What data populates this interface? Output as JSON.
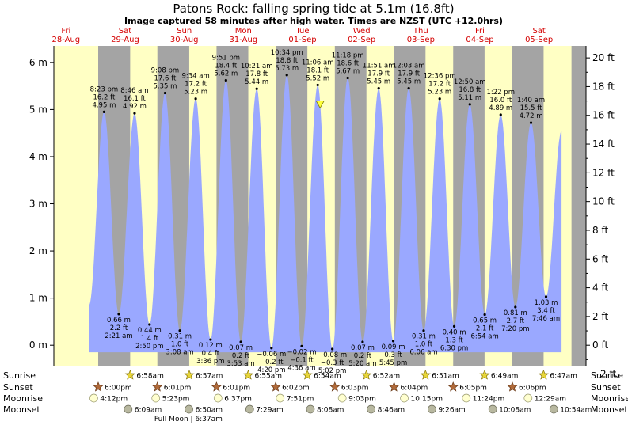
{
  "chart_data": {
    "type": "area",
    "title": "Patons Rock: falling  spring tide at 5.1m (16.8ft)",
    "subtitle": "Image captured 58 minutes after high water. Times are NZST (UTC +12.0hrs)",
    "day_labels": [
      {
        "day": "Fri",
        "date": "28-Aug"
      },
      {
        "day": "Sat",
        "date": "29-Aug"
      },
      {
        "day": "Sun",
        "date": "30-Aug"
      },
      {
        "day": "Mon",
        "date": "31-Aug"
      },
      {
        "day": "Tue",
        "date": "01-Sep"
      },
      {
        "day": "Wed",
        "date": "02-Sep"
      },
      {
        "day": "Thu",
        "date": "03-Sep"
      },
      {
        "day": "Fri",
        "date": "04-Sep"
      },
      {
        "day": "Sat",
        "date": "05-Sep"
      }
    ],
    "y_left": {
      "unit": "m",
      "range": [
        -0.45,
        6.35
      ],
      "ticks": [
        "0 m",
        "1 m",
        "2 m",
        "3 m",
        "4 m",
        "5 m",
        "6 m"
      ]
    },
    "y_right": {
      "unit": "ft",
      "ticks": [
        "−2 ft",
        "0 ft",
        "2 ft",
        "4 ft",
        "6 ft",
        "8 ft",
        "10 ft",
        "12 ft",
        "14 ft",
        "16 ft",
        "18 ft",
        "20 ft"
      ]
    },
    "x_range_hours": [
      0,
      216
    ],
    "tides": [
      {
        "type": "H",
        "t": 20.38,
        "m": 4.95,
        "m_label": "4.95 m",
        "ft_label": "16.2 ft",
        "time": "8:23 pm"
      },
      {
        "type": "L",
        "t": 26.35,
        "m": 0.66,
        "m_label": "0.66 m",
        "ft_label": "2.2 ft",
        "time": "2:21 am"
      },
      {
        "type": "H",
        "t": 32.77,
        "m": 4.92,
        "m_label": "4.92 m",
        "ft_label": "16.1 ft",
        "time": "8:46 am"
      },
      {
        "type": "L",
        "t": 38.83,
        "m": 0.44,
        "m_label": "0.44 m",
        "ft_label": "1.4 ft",
        "time": "2:50 pm"
      },
      {
        "type": "H",
        "t": 45.13,
        "m": 5.35,
        "m_label": "5.35 m",
        "ft_label": "17.6 ft",
        "time": "9:08 pm"
      },
      {
        "type": "L",
        "t": 51.13,
        "m": 0.31,
        "m_label": "0.31 m",
        "ft_label": "1.0 ft",
        "time": "3:08 am"
      },
      {
        "type": "H",
        "t": 57.57,
        "m": 5.23,
        "m_label": "5.23 m",
        "ft_label": "17.2 ft",
        "time": "9:34 am"
      },
      {
        "type": "L",
        "t": 63.6,
        "m": 0.12,
        "m_label": "0.12 m",
        "ft_label": "0.4 ft",
        "time": "3:36 pm"
      },
      {
        "type": "H",
        "t": 69.85,
        "m": 5.62,
        "m_label": "5.62 m",
        "ft_label": "18.4 ft",
        "time": "9:51 pm"
      },
      {
        "type": "L",
        "t": 75.88,
        "m": 0.07,
        "m_label": "0.07 m",
        "ft_label": "0.2 ft",
        "time": "3:53 am"
      },
      {
        "type": "H",
        "t": 82.35,
        "m": 5.44,
        "m_label": "5.44 m",
        "ft_label": "17.8 ft",
        "time": "10:21 am"
      },
      {
        "type": "L",
        "t": 88.33,
        "m": -0.06,
        "m_label": "−0.06 m",
        "ft_label": "−0.2 ft",
        "time": "4:20 pm"
      },
      {
        "type": "H",
        "t": 94.57,
        "m": 5.73,
        "m_label": "5.73 m",
        "ft_label": "18.8 ft",
        "time": "10:34 pm"
      },
      {
        "type": "L",
        "t": 100.6,
        "m": -0.02,
        "m_label": "−0.02 m",
        "ft_label": "−0.1 ft",
        "time": "4:36 am"
      },
      {
        "type": "H",
        "t": 107.1,
        "m": 5.52,
        "m_label": "5.52 m",
        "ft_label": "18.1 ft",
        "time": "11:06 am"
      },
      {
        "type": "L",
        "t": 113.03,
        "m": -0.08,
        "m_label": "−0.08 m",
        "ft_label": "−0.3 ft",
        "time": "5:02 pm"
      },
      {
        "type": "H",
        "t": 119.3,
        "m": 5.67,
        "m_label": "5.67 m",
        "ft_label": "18.6 ft",
        "time": "11:18 pm"
      },
      {
        "type": "L",
        "t": 125.33,
        "m": 0.07,
        "m_label": "0.07 m",
        "ft_label": "0.2 ft",
        "time": "5:20 am"
      },
      {
        "type": "H",
        "t": 131.85,
        "m": 5.45,
        "m_label": "5.45 m",
        "ft_label": "17.9 ft",
        "time": "11:51 am"
      },
      {
        "type": "L",
        "t": 137.75,
        "m": 0.09,
        "m_label": "0.09 m",
        "ft_label": "0.3 ft",
        "time": "5:45 pm"
      },
      {
        "type": "H",
        "t": 144.05,
        "m": 5.45,
        "m_label": "5.45 m",
        "ft_label": "17.9 ft",
        "time": "12:03 am"
      },
      {
        "type": "L",
        "t": 150.1,
        "m": 0.31,
        "m_label": "0.31 m",
        "ft_label": "1.0 ft",
        "time": "6:06 am"
      },
      {
        "type": "H",
        "t": 156.6,
        "m": 5.23,
        "m_label": "5.23 m",
        "ft_label": "17.2 ft",
        "time": "12:36 pm"
      },
      {
        "type": "L",
        "t": 162.5,
        "m": 0.4,
        "m_label": "0.40 m",
        "ft_label": "1.3 ft",
        "time": "6:30 pm"
      },
      {
        "type": "H",
        "t": 168.83,
        "m": 5.11,
        "m_label": "5.11 m",
        "ft_label": "16.8 ft",
        "time": "12:50 am"
      },
      {
        "type": "L",
        "t": 174.9,
        "m": 0.65,
        "m_label": "0.65 m",
        "ft_label": "2.1 ft",
        "time": "6:54 am"
      },
      {
        "type": "H",
        "t": 181.37,
        "m": 4.89,
        "m_label": "4.89 m",
        "ft_label": "16.0 ft",
        "time": "1:22 pm"
      },
      {
        "type": "L",
        "t": 187.33,
        "m": 0.81,
        "m_label": "0.81 m",
        "ft_label": "2.7 ft",
        "time": "7:20 pm"
      },
      {
        "type": "H",
        "t": 193.67,
        "m": 4.72,
        "m_label": "4.72 m",
        "ft_label": "15.5 ft",
        "time": "1:40 am"
      },
      {
        "type": "L",
        "t": 199.77,
        "m": 1.03,
        "m_label": "1.03 m",
        "ft_label": "3.4 ft",
        "time": "7:46 am"
      }
    ],
    "current_marker": {
      "t": 108.07,
      "m": 5.1
    },
    "night_bands": [
      [
        18.0,
        30.97
      ],
      [
        42.02,
        54.95
      ],
      [
        66.03,
        78.92
      ],
      [
        90.03,
        102.9
      ],
      [
        114.05,
        126.87
      ],
      [
        138.07,
        150.85
      ],
      [
        162.08,
        174.82
      ],
      [
        186.1,
        198.78
      ],
      [
        210.1,
        216
      ]
    ],
    "rows": [
      {
        "label": "Sunrise",
        "icon": "star-yellow",
        "events": [
          {
            "t": 30.97,
            "text": "6:58am"
          },
          {
            "t": 54.95,
            "text": "6:57am"
          },
          {
            "t": 78.92,
            "text": "6:55am"
          },
          {
            "t": 102.9,
            "text": "6:54am"
          },
          {
            "t": 126.87,
            "text": "6:52am"
          },
          {
            "t": 150.85,
            "text": "6:51am"
          },
          {
            "t": 174.82,
            "text": "6:49am"
          },
          {
            "t": 198.78,
            "text": "6:47am"
          }
        ]
      },
      {
        "label": "Sunset",
        "icon": "star-brown",
        "events": [
          {
            "t": 18.0,
            "text": "6:00pm"
          },
          {
            "t": 42.02,
            "text": "6:01pm"
          },
          {
            "t": 66.03,
            "text": "6:01pm"
          },
          {
            "t": 90.03,
            "text": "6:02pm"
          },
          {
            "t": 114.05,
            "text": "6:03pm"
          },
          {
            "t": 138.07,
            "text": "6:04pm"
          },
          {
            "t": 162.08,
            "text": "6:05pm"
          },
          {
            "t": 186.1,
            "text": "6:06pm"
          }
        ]
      },
      {
        "label": "Moonrise",
        "icon": "moon-light",
        "events": [
          {
            "t": 16.2,
            "text": "4:12pm"
          },
          {
            "t": 41.38,
            "text": "5:23pm"
          },
          {
            "t": 66.62,
            "text": "6:37pm"
          },
          {
            "t": 91.85,
            "text": "7:51pm"
          },
          {
            "t": 117.05,
            "text": "9:03pm"
          },
          {
            "t": 142.25,
            "text": "10:15pm"
          },
          {
            "t": 167.4,
            "text": "11:24pm"
          },
          {
            "t": 192.48,
            "text": "12:29am"
          }
        ]
      },
      {
        "label": "Moonset",
        "icon": "moon-dark",
        "events": [
          {
            "t": 30.15,
            "text": "6:09am"
          },
          {
            "t": 54.83,
            "text": "6:50am"
          },
          {
            "t": 79.48,
            "text": "7:29am"
          },
          {
            "t": 104.13,
            "text": "8:08am"
          },
          {
            "t": 128.77,
            "text": "8:46am"
          },
          {
            "t": 153.43,
            "text": "9:26am"
          },
          {
            "t": 178.13,
            "text": "10:08am"
          },
          {
            "t": 202.9,
            "text": "10:54am"
          }
        ]
      }
    ],
    "moon_phase": {
      "t": 54.62,
      "text": "Full Moon | 6:37am"
    }
  }
}
